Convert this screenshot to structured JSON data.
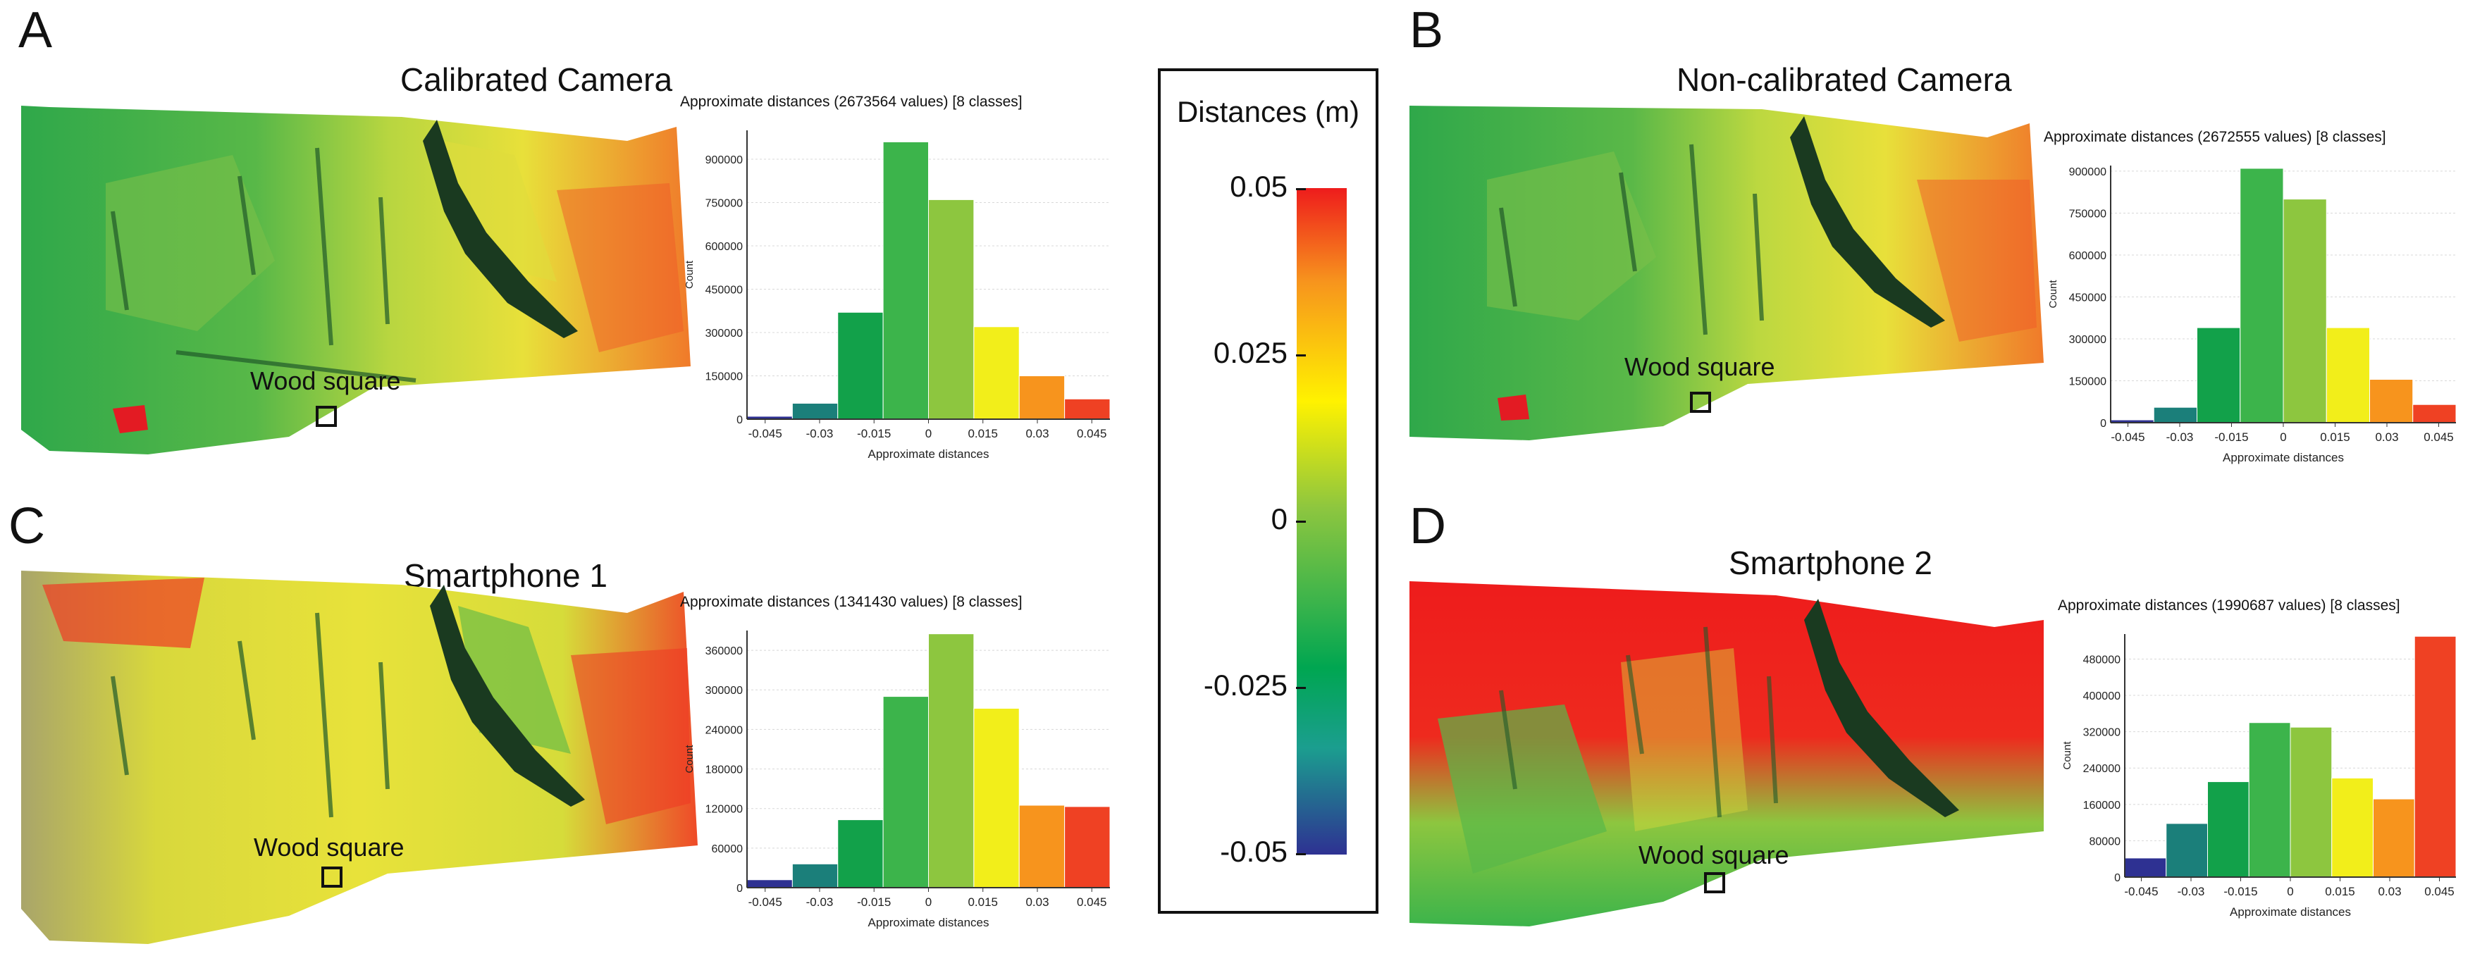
{
  "panels": [
    {
      "letter": "A",
      "title": "Calibrated Camera",
      "wood_label": "Wood square"
    },
    {
      "letter": "B",
      "title": "Non-calibrated Camera",
      "wood_label": "Wood square"
    },
    {
      "letter": "C",
      "title": "Smartphone 1",
      "wood_label": "Wood square"
    },
    {
      "letter": "D",
      "title": "Smartphone 2",
      "wood_label": "Wood square"
    }
  ],
  "colorbar": {
    "title": "Distances (m)",
    "ticks": [
      "0.05",
      "0.025",
      "0",
      "-0.025",
      "-0.05"
    ],
    "colors": [
      "#ee1c1c",
      "#f7941d",
      "#fff200",
      "#8dc63f",
      "#3cb44b",
      "#00a651",
      "#1b9e8f",
      "#2e3192"
    ]
  },
  "bar_colors": [
    "#2e3192",
    "#1b7f7a",
    "#12a14a",
    "#3cb44b",
    "#8dc63f",
    "#f2ee1a",
    "#f7941d",
    "#ef4123"
  ],
  "chart_data": [
    {
      "type": "bar",
      "title": "Approximate distances (2673564 values) [8 classes]",
      "xlabel": "Approximate distances",
      "ylabel": "Count",
      "tick_labels": [
        "-0.045",
        "-0.03",
        "-0.015",
        "0",
        "0.015",
        "0.03",
        "0.045"
      ],
      "x_range": [
        -0.05,
        0.05
      ],
      "categories": [
        "-0.05 to -0.0375",
        "-0.0375 to -0.025",
        "-0.025 to -0.0125",
        "-0.0125 to 0",
        "0 to 0.0125",
        "0.0125 to 0.025",
        "0.025 to 0.0375",
        "0.0375 to 0.05"
      ],
      "values": [
        10000,
        55000,
        370000,
        960000,
        760000,
        320000,
        150000,
        70000
      ],
      "yticks": [
        "0",
        "150000",
        "300000",
        "450000",
        "600000",
        "750000",
        "900000"
      ],
      "ylim": [
        0,
        1000000
      ]
    },
    {
      "type": "bar",
      "title": "Approximate distances (2672555 values) [8 classes]",
      "xlabel": "Approximate distances",
      "ylabel": "Count",
      "tick_labels": [
        "-0.045",
        "-0.03",
        "-0.015",
        "0",
        "0.015",
        "0.03",
        "0.045"
      ],
      "x_range": [
        -0.05,
        0.05
      ],
      "categories": [
        "-0.05 to -0.0375",
        "-0.0375 to -0.025",
        "-0.025 to -0.0125",
        "-0.0125 to 0",
        "0 to 0.0125",
        "0.0125 to 0.025",
        "0.025 to 0.0375",
        "0.0375 to 0.05"
      ],
      "values": [
        10000,
        55000,
        340000,
        910000,
        800000,
        340000,
        155000,
        65000
      ],
      "yticks": [
        "0",
        "150000",
        "300000",
        "450000",
        "600000",
        "750000",
        "900000"
      ],
      "ylim": [
        0,
        920000
      ]
    },
    {
      "type": "bar",
      "title": "Approximate distances (1341430 values) [8 classes]",
      "xlabel": "Approximate distances",
      "ylabel": "Count",
      "tick_labels": [
        "-0.045",
        "-0.03",
        "-0.015",
        "0",
        "0.015",
        "0.03",
        "0.045"
      ],
      "x_range": [
        -0.05,
        0.05
      ],
      "categories": [
        "-0.05 to -0.0375",
        "-0.0375 to -0.025",
        "-0.025 to -0.0125",
        "-0.0125 to 0",
        "0 to 0.0125",
        "0.0125 to 0.025",
        "0.025 to 0.0375",
        "0.0375 to 0.05"
      ],
      "values": [
        12000,
        36000,
        103000,
        290000,
        385000,
        272000,
        125000,
        123000
      ],
      "yticks": [
        "0",
        "60000",
        "120000",
        "180000",
        "240000",
        "300000",
        "360000"
      ],
      "ylim": [
        0,
        390000
      ]
    },
    {
      "type": "bar",
      "title": "Approximate distances (1990687 values) [8 classes]",
      "xlabel": "Approximate distances",
      "ylabel": "Count",
      "tick_labels": [
        "-0.045",
        "-0.03",
        "-0.015",
        "0",
        "0.015",
        "0.03",
        "0.045"
      ],
      "x_range": [
        -0.05,
        0.05
      ],
      "categories": [
        "-0.05 to -0.0375",
        "-0.0375 to -0.025",
        "-0.025 to -0.0125",
        "-0.0125 to 0",
        "0 to 0.0125",
        "0.0125 to 0.025",
        "0.025 to 0.0375",
        "0.0375 to 0.05"
      ],
      "values": [
        42000,
        118000,
        210000,
        340000,
        330000,
        218000,
        172000,
        530000
      ],
      "yticks": [
        "0",
        "80000",
        "160000",
        "240000",
        "320000",
        "400000",
        "480000"
      ],
      "ylim": [
        0,
        535000
      ]
    }
  ]
}
